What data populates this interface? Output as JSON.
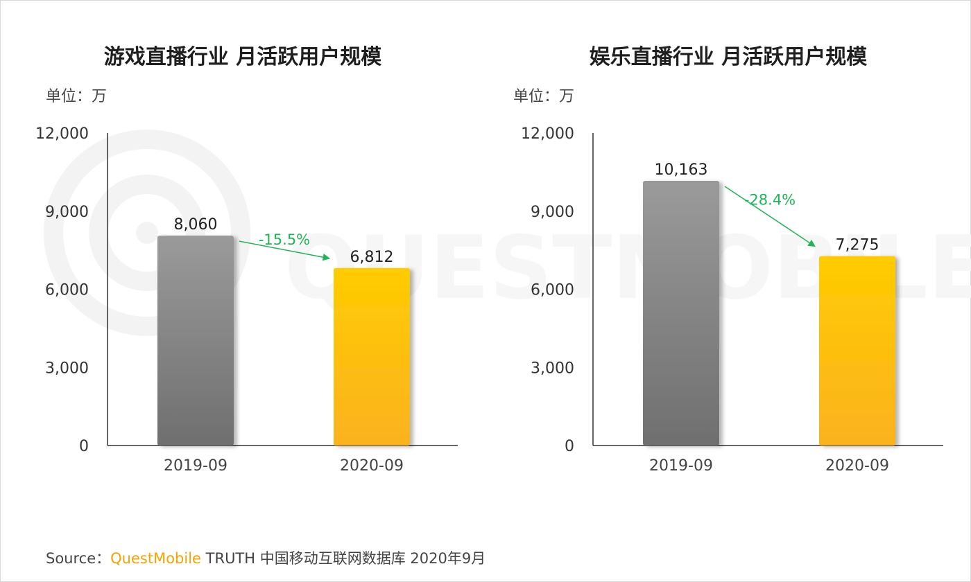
{
  "chart_data": [
    {
      "type": "bar",
      "title": "游戏直播行业 月活跃用户规模",
      "unit_label": "单位：万",
      "categories": [
        "2019-09",
        "2020-09"
      ],
      "values": [
        8060,
        6812
      ],
      "value_labels": [
        "8,060",
        "6,812"
      ],
      "ylim": [
        0,
        12000
      ],
      "yticks": [
        0,
        3000,
        6000,
        9000,
        12000
      ],
      "ytick_labels": [
        "0",
        "3,000",
        "6,000",
        "9,000",
        "12,000"
      ],
      "change_label": "-15.5%",
      "bar_colors": [
        "#8f8f8f",
        "#ffc200"
      ],
      "change_color": "#20b455",
      "grid": false
    },
    {
      "type": "bar",
      "title": "娱乐直播行业 月活跃用户规模",
      "unit_label": "单位：万",
      "categories": [
        "2019-09",
        "2020-09"
      ],
      "values": [
        10163,
        7275
      ],
      "value_labels": [
        "10,163",
        "7,275"
      ],
      "ylim": [
        0,
        12000
      ],
      "yticks": [
        0,
        3000,
        6000,
        9000,
        12000
      ],
      "ytick_labels": [
        "0",
        "3,000",
        "6,000",
        "9,000",
        "12,000"
      ],
      "change_label": "-28.4%",
      "bar_colors": [
        "#8f8f8f",
        "#ffc200"
      ],
      "change_color": "#20b455",
      "grid": false
    }
  ],
  "source": {
    "prefix": "Source：",
    "brand": "QuestMobile",
    "text": " TRUTH 中国移动互联网数据库 2020年9月"
  },
  "watermark": {
    "text": "QUESTMOBILE"
  }
}
